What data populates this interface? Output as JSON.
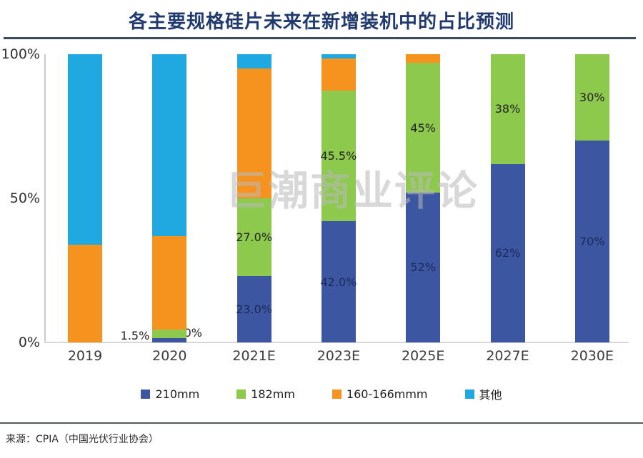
{
  "title": "各主要规格硅片未来在新增装机中的占比预测",
  "watermark": "巨潮商业评论",
  "source": "来源：CPIA（中国光伏行业协会）",
  "y_axis": {
    "ticks": [
      "100%",
      "50%",
      "0%"
    ]
  },
  "colors": {
    "navy": "#3c56a2",
    "green": "#8dc94d",
    "orange": "#f6921e",
    "cyan": "#20a8e0",
    "title_navy": "#203a70"
  },
  "chart_data": {
    "type": "bar",
    "stacked": true,
    "title": "各主要规格硅片未来在新增装机中的占比预测",
    "categories": [
      "2019",
      "2020",
      "2021E",
      "2023E",
      "2025E",
      "2027E",
      "2030E"
    ],
    "unit": "%",
    "ylim": [
      0,
      100
    ],
    "y_ticks": [
      0,
      50,
      100
    ],
    "grid": false,
    "legend_position": "bottom",
    "series": [
      {
        "name": "210mm",
        "color": "#3c56a2",
        "label_color": "#1c2b57",
        "values": [
          0,
          1.5,
          23.0,
          42.0,
          52,
          62,
          70
        ],
        "labels": [
          "",
          "1.5%",
          "23.0%",
          "42.0%",
          "52%",
          "62%",
          "70%"
        ],
        "label_pos": [
          "",
          "left",
          "inside",
          "inside",
          "inside",
          "inside",
          "inside"
        ]
      },
      {
        "name": "182mm",
        "color": "#8dc94d",
        "label_color": "#222222",
        "values": [
          0,
          3.0,
          27.0,
          45.5,
          45,
          38,
          30
        ],
        "labels": [
          "",
          "3.0%",
          "27.0%",
          "45.5%",
          "45%",
          "38%",
          "30%"
        ],
        "label_pos": [
          "",
          "right",
          "inside",
          "inside",
          "inside",
          "inside",
          "inside"
        ]
      },
      {
        "name": "160-166mmm",
        "color": "#f6921e",
        "label_color": "#222222",
        "values": [
          34,
          32.5,
          45,
          11,
          3,
          0,
          0
        ],
        "labels": [
          "",
          "",
          "",
          "",
          "",
          "",
          ""
        ],
        "label_pos": [
          "",
          "",
          "",
          "",
          "",
          "",
          ""
        ]
      },
      {
        "name": "其他",
        "color": "#20a8e0",
        "label_color": "#222222",
        "values": [
          66,
          63,
          5,
          1.5,
          0,
          0,
          0
        ],
        "labels": [
          "",
          "",
          "",
          "",
          "",
          "",
          ""
        ],
        "label_pos": [
          "",
          "",
          "",
          "",
          "",
          "",
          ""
        ]
      }
    ]
  }
}
